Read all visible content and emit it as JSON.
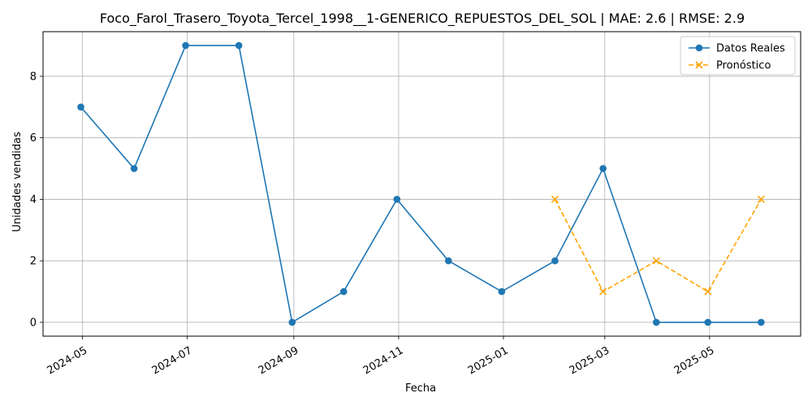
{
  "chart_data": {
    "type": "line",
    "title": "Foco_Farol_Trasero_Toyota_Tercel_1998__1-GENERICO_REPUESTOS_DEL_SOL | MAE: 2.6 | RMSE: 2.9",
    "xlabel": "Fecha",
    "ylabel": "Unidades vendidas",
    "x_ticks": [
      "2024-05",
      "2024-07",
      "2024-09",
      "2024-11",
      "2025-01",
      "2025-03",
      "2025-05"
    ],
    "y_ticks": [
      0,
      2,
      4,
      6,
      8
    ],
    "ylim": [
      -0.45,
      9.45
    ],
    "xlim": [
      "2024-04-08",
      "2025-06-23"
    ],
    "grid": true,
    "legend_position": "top-right",
    "series": [
      {
        "name": "Datos Reales",
        "color": "#1f77b4",
        "marker": "circle",
        "line_style": "solid",
        "x": [
          "2024-04-30",
          "2024-05-31",
          "2024-06-30",
          "2024-07-31",
          "2024-08-31",
          "2024-09-30",
          "2024-10-31",
          "2024-11-30",
          "2024-12-31",
          "2025-01-31",
          "2025-02-28",
          "2025-03-31",
          "2025-04-30",
          "2025-05-31"
        ],
        "values": [
          7,
          5,
          9,
          9,
          0,
          1,
          4,
          2,
          1,
          2,
          5,
          0,
          0,
          0
        ]
      },
      {
        "name": "Pronóstico",
        "color": "#ffa500",
        "marker": "x",
        "line_style": "dashed",
        "x": [
          "2025-01-31",
          "2025-02-28",
          "2025-03-31",
          "2025-04-30",
          "2025-05-31"
        ],
        "values": [
          4,
          1,
          2,
          1,
          4
        ]
      }
    ]
  }
}
